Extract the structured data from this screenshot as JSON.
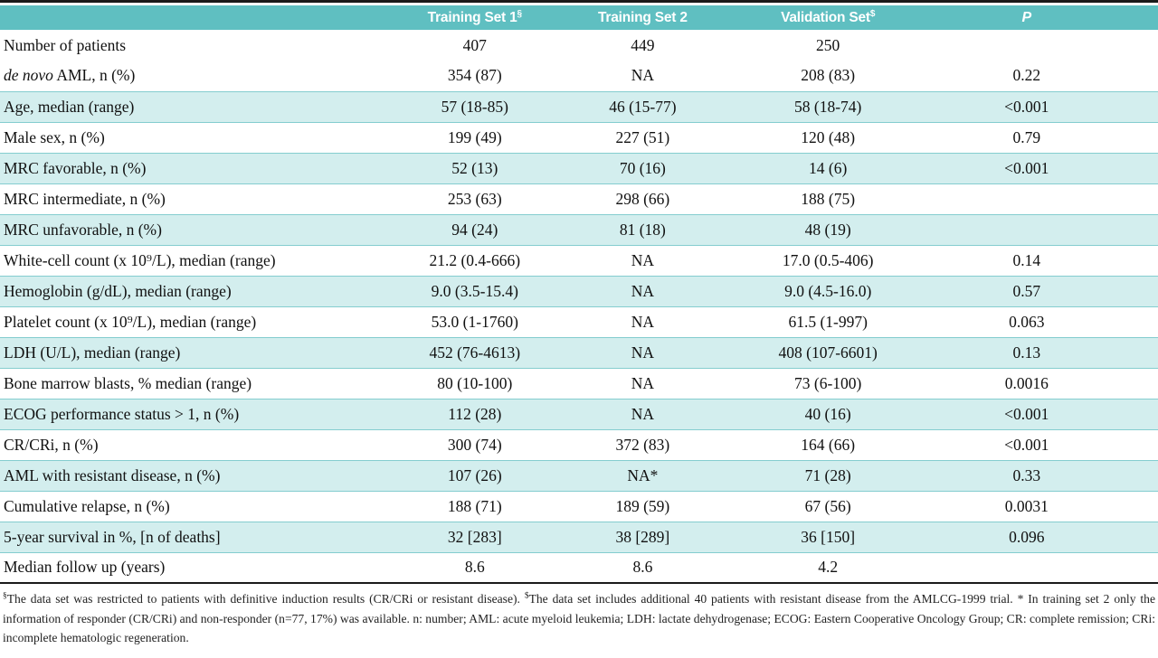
{
  "colors": {
    "accent": "#5fbfc1",
    "row-shade": "#d3eeee",
    "row-border": "#84cdcf",
    "rule": "#1a1a1a"
  },
  "table": {
    "header": {
      "label_col": "",
      "col1": {
        "label": "Training Set 1",
        "marker": "§"
      },
      "col2": {
        "label": "Training Set 2",
        "marker": ""
      },
      "col3": {
        "label": "Validation Set",
        "marker": "$"
      },
      "col4": {
        "label": "P",
        "marker": ""
      }
    },
    "rows": [
      {
        "label_em": "",
        "label": "Number of patients",
        "values": [
          "407",
          "449",
          "250",
          ""
        ],
        "shaded": false
      },
      {
        "label_em": "de novo",
        "label": " AML, n (%)",
        "values": [
          "354 (87)",
          "NA",
          "208 (83)",
          "0.22"
        ],
        "shaded": false
      },
      {
        "label_em": "",
        "label": "Age, median (range)",
        "values": [
          "57 (18-85)",
          "46 (15-77)",
          "58 (18-74)",
          "<0.001"
        ],
        "shaded": true
      },
      {
        "label_em": "",
        "label": "Male sex, n (%)",
        "values": [
          "199 (49)",
          "227 (51)",
          "120 (48)",
          "0.79"
        ],
        "shaded": false
      },
      {
        "label_em": "",
        "label": "MRC favorable, n (%)",
        "values": [
          "52 (13)",
          "70 (16)",
          "14 (6)",
          "<0.001"
        ],
        "shaded": true
      },
      {
        "label_em": "",
        "label": "MRC intermediate, n (%)",
        "values": [
          "253 (63)",
          "298 (66)",
          "188 (75)",
          ""
        ],
        "shaded": false
      },
      {
        "label_em": "",
        "label": "MRC unfavorable, n (%)",
        "values": [
          "94 (24)",
          "81 (18)",
          "48 (19)",
          ""
        ],
        "shaded": true
      },
      {
        "label_em": "",
        "label": "White-cell count (x 10⁹/L), median (range)",
        "values": [
          "21.2 (0.4-666)",
          "NA",
          "17.0 (0.5-406)",
          "0.14"
        ],
        "shaded": false
      },
      {
        "label_em": "",
        "label": "Hemoglobin (g/dL), median (range)",
        "values": [
          "9.0 (3.5-15.4)",
          "NA",
          "9.0 (4.5-16.0)",
          "0.57"
        ],
        "shaded": true
      },
      {
        "label_em": "",
        "label": "Platelet count (x 10⁹/L), median (range)",
        "values": [
          "53.0 (1-1760)",
          "NA",
          "61.5 (1-997)",
          "0.063"
        ],
        "shaded": false
      },
      {
        "label_em": "",
        "label": "LDH (U/L), median (range)",
        "values": [
          "452 (76-4613)",
          "NA",
          "408 (107-6601)",
          "0.13"
        ],
        "shaded": true
      },
      {
        "label_em": "",
        "label": "Bone marrow blasts, % median (range)",
        "values": [
          "80 (10-100)",
          "NA",
          "73 (6-100)",
          "0.0016"
        ],
        "shaded": false
      },
      {
        "label_em": "",
        "label": "ECOG performance status > 1, n (%)",
        "values": [
          "112 (28)",
          "NA",
          "40 (16)",
          "<0.001"
        ],
        "shaded": true
      },
      {
        "label_em": "",
        "label": "CR/CRi, n (%)",
        "values": [
          "300 (74)",
          "372 (83)",
          "164 (66)",
          "<0.001"
        ],
        "shaded": false
      },
      {
        "label_em": "",
        "label": "AML with resistant disease, n (%)",
        "values": [
          "107 (26)",
          "NA*",
          "71 (28)",
          "0.33"
        ],
        "shaded": true
      },
      {
        "label_em": "",
        "label": "Cumulative relapse, n (%)",
        "values": [
          "188 (71)",
          "189 (59)",
          "67 (56)",
          "0.0031"
        ],
        "shaded": false
      },
      {
        "label_em": "",
        "label": "5-year survival in %, [n of deaths]",
        "values": [
          "32 [283]",
          "38 [289]",
          "36 [150]",
          "0.096"
        ],
        "shaded": true
      },
      {
        "label_em": "",
        "label": "Median follow up (years)",
        "values": [
          "8.6",
          "8.6",
          "4.2",
          ""
        ],
        "shaded": false
      }
    ]
  },
  "footnotes": {
    "segments": [
      {
        "sup": true,
        "text": "§"
      },
      {
        "sup": false,
        "text": "The data set was restricted to patients with definitive induction results (CR/CRi or resistant disease). "
      },
      {
        "sup": true,
        "text": "$"
      },
      {
        "sup": false,
        "text": "The data set includes additional 40 patients with resistant disease from the AMLCG-1999 trial. * In training set 2 only the information of responder (CR/CRi) and non-responder (n=77, 17%) was available. n: number; AML: acute myeloid leukemia; LDH: lactate dehydrogenase; ECOG: Eastern Cooperative Oncology Group; CR: complete remission; CRi: incomplete hematologic regeneration."
      }
    ]
  }
}
